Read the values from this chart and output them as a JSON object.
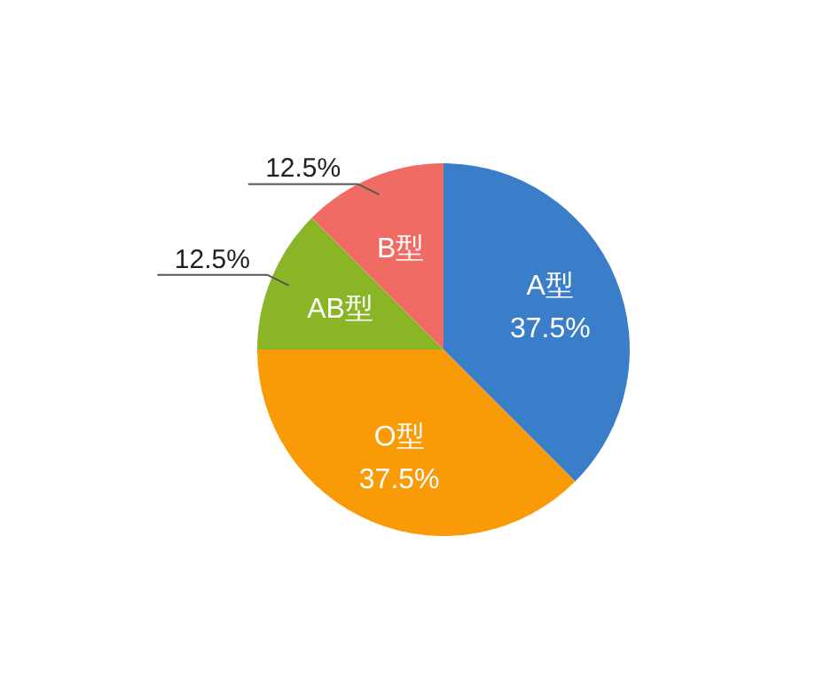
{
  "chart_data": {
    "type": "pie",
    "categories": [
      "A型",
      "O型",
      "AB型",
      "B型"
    ],
    "values": [
      37.5,
      37.5,
      12.5,
      12.5
    ],
    "colors": [
      "#3a7dc8",
      "#f99b06",
      "#8ab526",
      "#ef6b63"
    ],
    "value_labels": [
      "37.5%",
      "37.5%",
      "12.5%",
      "12.5%"
    ]
  }
}
